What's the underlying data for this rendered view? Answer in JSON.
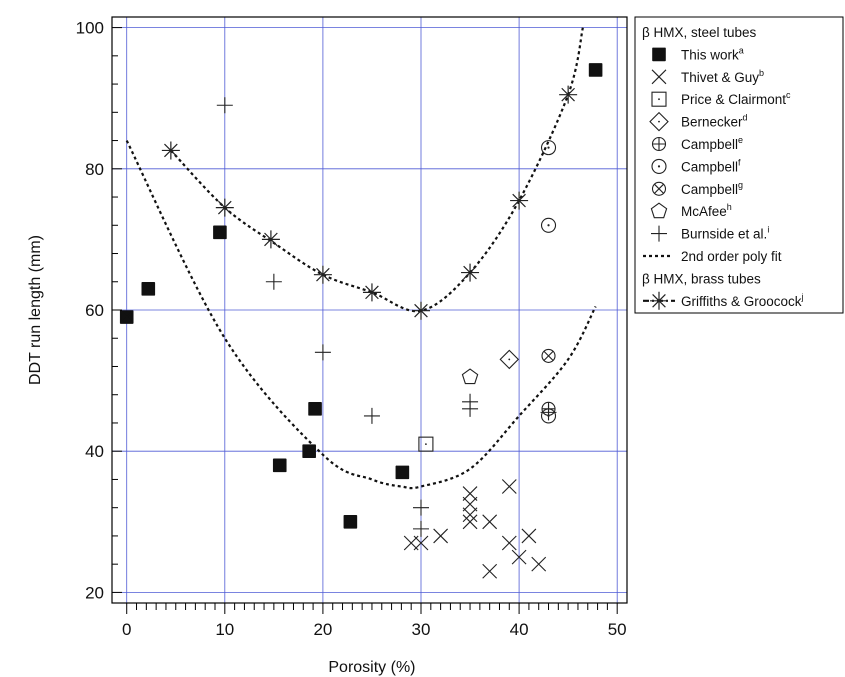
{
  "chart_data": {
    "type": "scatter",
    "xlabel": "Porosity (%)",
    "ylabel": "DDT run length (mm)",
    "xlim": [
      -1.5,
      51
    ],
    "ylim": [
      18.5,
      101.5
    ],
    "x_ticks": [
      0,
      10,
      20,
      30,
      40,
      50
    ],
    "y_ticks": [
      20,
      40,
      60,
      80,
      100
    ],
    "grid": true,
    "legend_position": "right",
    "legend_groups": [
      {
        "title": "β HMX, steel tubes",
        "entries": [
          "this_work",
          "thivet",
          "price",
          "bernecker",
          "campbell_e",
          "campbell_f",
          "campbell_g",
          "mcafee",
          "burnside",
          "poly_fit"
        ]
      },
      {
        "title": "β HMX, brass tubes",
        "entries": [
          "griffiths"
        ]
      }
    ],
    "series": [
      {
        "id": "this_work",
        "name": "This work",
        "sup": "a",
        "marker": "bowtie",
        "points": [
          [
            0,
            59
          ],
          [
            2.2,
            63
          ],
          [
            9.5,
            71
          ],
          [
            15.6,
            38
          ],
          [
            18.6,
            40
          ],
          [
            19.2,
            46
          ],
          [
            22.8,
            30
          ],
          [
            28.1,
            37
          ],
          [
            47.8,
            94
          ]
        ]
      },
      {
        "id": "thivet",
        "name": "Thivet & Guy",
        "sup": "b",
        "marker": "x",
        "points": [
          [
            29,
            27
          ],
          [
            30,
            27
          ],
          [
            32,
            28
          ],
          [
            35,
            30
          ],
          [
            35,
            31
          ],
          [
            35,
            32.5
          ],
          [
            35,
            34
          ],
          [
            37,
            30
          ],
          [
            37,
            23
          ],
          [
            39,
            35
          ],
          [
            39,
            27
          ],
          [
            40,
            25
          ],
          [
            41,
            28
          ],
          [
            42,
            24
          ]
        ]
      },
      {
        "id": "price",
        "name": "Price & Clairmont",
        "sup": "c",
        "marker": "square",
        "points": [
          [
            30.5,
            41
          ]
        ]
      },
      {
        "id": "bernecker",
        "name": "Bernecker",
        "sup": "d",
        "marker": "diamond",
        "points": [
          [
            39,
            53
          ]
        ]
      },
      {
        "id": "campbell_e",
        "name": "Campbell",
        "sup": "e",
        "marker": "circle-plus",
        "points": [
          [
            43,
            46
          ]
        ]
      },
      {
        "id": "campbell_f",
        "name": "Campbell",
        "sup": "f",
        "marker": "circle-dot",
        "points": [
          [
            43,
            83
          ],
          [
            43,
            72
          ],
          [
            43,
            45
          ]
        ]
      },
      {
        "id": "campbell_g",
        "name": "Campbell",
        "sup": "g",
        "marker": "circle-x",
        "points": [
          [
            43,
            53.5
          ]
        ]
      },
      {
        "id": "mcafee",
        "name": "McAfee",
        "sup": "h",
        "marker": "pentagon",
        "points": [
          [
            35,
            50.5
          ]
        ]
      },
      {
        "id": "burnside",
        "name": "Burnside et al.",
        "sup": "i",
        "marker": "plus",
        "points": [
          [
            10,
            89
          ],
          [
            15,
            64
          ],
          [
            20,
            54
          ],
          [
            25,
            45
          ],
          [
            30,
            32
          ],
          [
            30,
            29
          ],
          [
            35,
            47
          ],
          [
            35,
            46
          ],
          [
            43,
            45.5
          ]
        ]
      },
      {
        "id": "poly_fit",
        "name": "2nd order poly fit",
        "marker": "none",
        "line": "dashed",
        "points": [
          [
            0,
            84
          ],
          [
            10,
            56
          ],
          [
            20,
            39.5
          ],
          [
            25,
            36
          ],
          [
            28,
            35
          ],
          [
            30,
            35
          ],
          [
            35,
            37.5
          ],
          [
            40,
            45
          ],
          [
            45,
            53
          ],
          [
            47.8,
            60.5
          ]
        ]
      },
      {
        "id": "poly_fit_upper",
        "marker": "none",
        "line": "dashed",
        "points": [
          [
            4.5,
            82.6
          ],
          [
            10,
            74.5
          ],
          [
            15,
            69.5
          ],
          [
            20,
            65
          ],
          [
            25,
            62.5
          ],
          [
            30,
            59.9
          ],
          [
            35,
            65.3
          ],
          [
            40,
            75.5
          ],
          [
            45,
            90.5
          ],
          [
            46.5,
            100
          ]
        ]
      },
      {
        "id": "griffiths",
        "name": "Griffiths & Groocock",
        "sup": "j",
        "marker": "asterisk",
        "line": "dash-dot",
        "points": [
          [
            4.5,
            82.6
          ],
          [
            10,
            74.5
          ],
          [
            14.7,
            70
          ],
          [
            20,
            65
          ],
          [
            25,
            62.5
          ],
          [
            30,
            59.9
          ],
          [
            35,
            65.3
          ],
          [
            40,
            75.5
          ],
          [
            45,
            90.5
          ]
        ]
      }
    ]
  }
}
